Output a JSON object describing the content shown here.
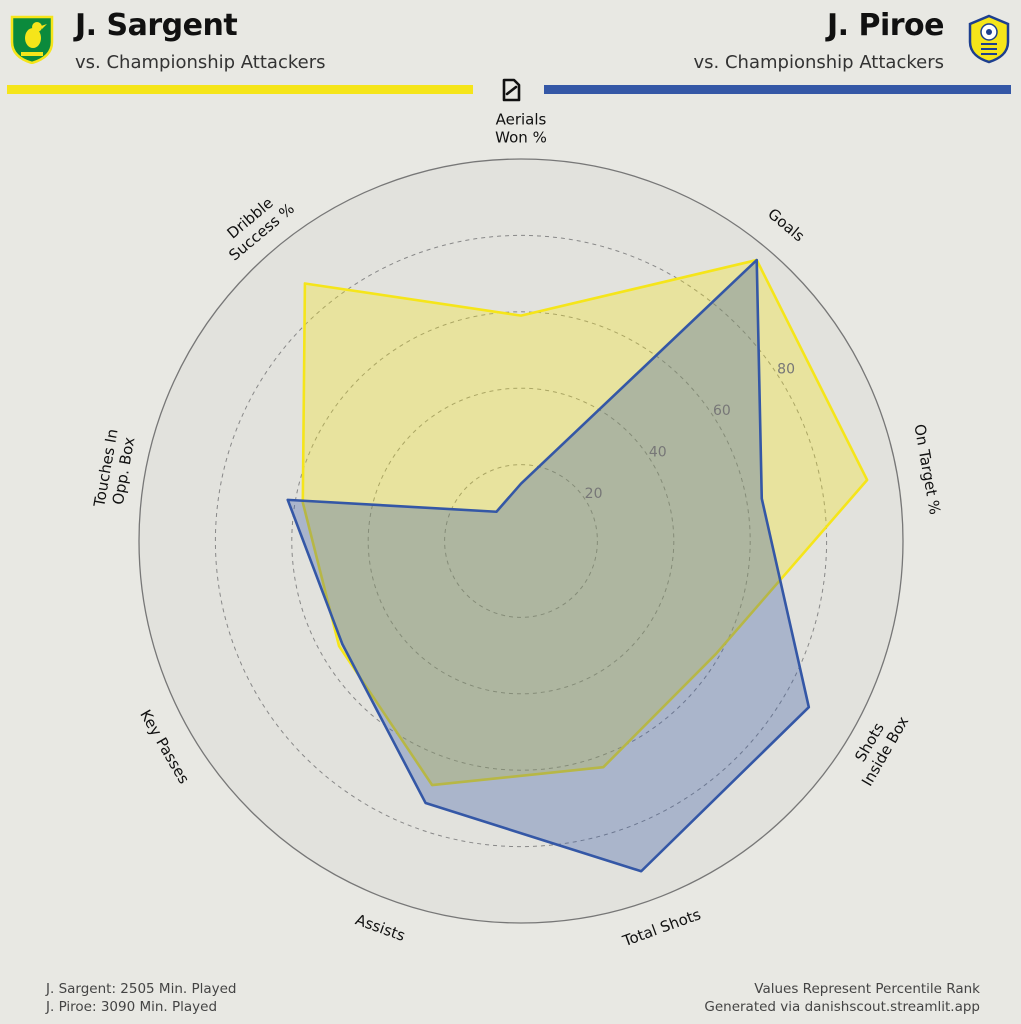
{
  "player_left": {
    "name": "J. Sargent",
    "subtitle": "vs. Championship Attackers",
    "color": "#f5e51a",
    "crest": "norwich-canary-crest-icon"
  },
  "player_right": {
    "name": "J. Piroe",
    "subtitle": "vs. Championship Attackers",
    "color": "#3457a6",
    "crest": "leeds-white-rose-crest-icon"
  },
  "logo": "danishscout-logo-icon",
  "footer": {
    "left_line1": "J. Sargent: 2505 Min. Played",
    "left_line2": "J. Piroe: 3090 Min. Played",
    "right_line1": "Values Represent Percentile Rank",
    "right_line2": "Generated via danishscout.streamlit.app"
  },
  "chart_data": {
    "type": "radar",
    "range": [
      0,
      100
    ],
    "ticks": [
      20,
      40,
      60,
      80
    ],
    "grid": true,
    "axes": [
      {
        "label": [
          "Aerials",
          "Won %"
        ]
      },
      {
        "label": [
          "Goals"
        ]
      },
      {
        "label": [
          "On Target %"
        ]
      },
      {
        "label": [
          "Shots",
          "Inside Box"
        ]
      },
      {
        "label": [
          "Total Shots"
        ]
      },
      {
        "label": [
          "Assists"
        ]
      },
      {
        "label": [
          "Key Passes"
        ]
      },
      {
        "label": [
          "Touches In",
          "Opp. Box"
        ]
      },
      {
        "label": [
          "Dribble",
          "Success %"
        ]
      }
    ],
    "series": [
      {
        "name": "J. Sargent",
        "color": "#f5e51a",
        "values": [
          59,
          96,
          92,
          59,
          63,
          68,
          55,
          58,
          88
        ]
      },
      {
        "name": "J. Piroe",
        "color": "#3457a6",
        "values": [
          15,
          96,
          64,
          87,
          92,
          73,
          54,
          62,
          10
        ]
      }
    ]
  }
}
